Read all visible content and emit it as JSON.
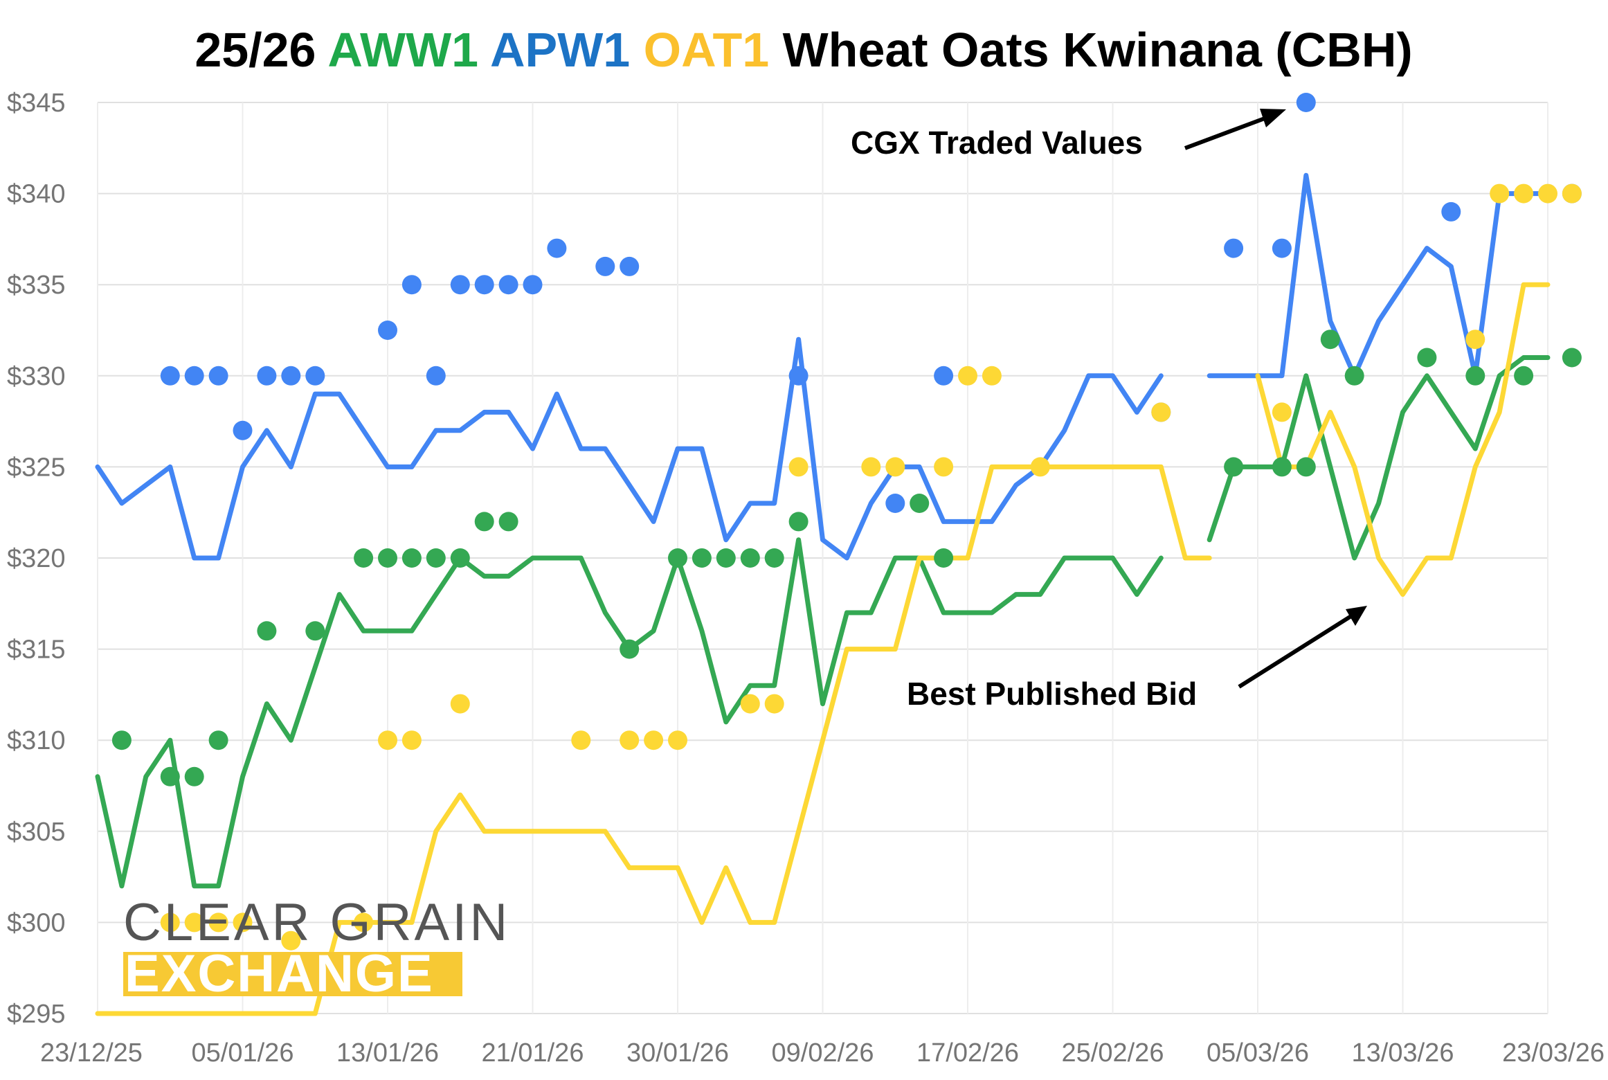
{
  "colors": {
    "aww1": "#34a853",
    "apw1": "#4285f4",
    "oat1": "#fbc02d",
    "grid": "#e0e0e0",
    "tick": "#757575",
    "title": "#000000",
    "logo_gold": "#f7c934",
    "logo_grey": "#555555"
  },
  "chart_data": {
    "type": "line",
    "title_parts": [
      {
        "text": "25/26 ",
        "color": "#000000"
      },
      {
        "text": "AWW1 ",
        "color": "#1ea84a"
      },
      {
        "text": "APW1 ",
        "color": "#1c73c5"
      },
      {
        "text": "OAT1 ",
        "color": "#fbc02d"
      },
      {
        "text": "Wheat Oats Kwinana (CBH)",
        "color": "#000000"
      }
    ],
    "y_ticks": [
      "$295",
      "$300",
      "$305",
      "$310",
      "$315",
      "$320",
      "$325",
      "$330",
      "$335",
      "$340",
      "$345"
    ],
    "y_tick_values": [
      295,
      300,
      305,
      310,
      315,
      320,
      325,
      330,
      335,
      340,
      345
    ],
    "ylim": [
      295,
      345
    ],
    "x_ticks": [
      "23/12/25",
      "05/01/26",
      "13/01/26",
      "21/01/26",
      "30/01/26",
      "09/02/26",
      "17/02/26",
      "25/02/26",
      "05/03/26",
      "13/03/26",
      "23/03/26"
    ],
    "x_tick_index": [
      0,
      6,
      12,
      18,
      24,
      30,
      36,
      42,
      48,
      54,
      60
    ],
    "n_points": 61,
    "grid": true,
    "series": [
      {
        "name": "APW1",
        "kind": "line",
        "color": "#4285f4",
        "values": [
          325,
          323,
          324,
          325,
          320,
          320,
          325,
          327,
          325,
          329,
          329,
          327,
          325,
          325,
          327,
          327,
          328,
          328,
          326,
          329,
          326,
          326,
          324,
          322,
          326,
          326,
          321,
          323,
          323,
          332,
          321,
          320,
          323,
          325,
          325,
          322,
          322,
          322,
          324,
          325,
          327,
          330,
          330,
          328,
          330,
          null,
          330,
          330,
          330,
          330,
          341,
          333,
          330,
          333,
          335,
          337,
          336,
          330,
          340,
          340,
          340
        ]
      },
      {
        "name": "AWW1",
        "kind": "line",
        "color": "#34a853",
        "values": [
          308,
          302,
          308,
          310,
          302,
          302,
          308,
          312,
          310,
          314,
          318,
          316,
          316,
          316,
          318,
          320,
          319,
          319,
          320,
          320,
          320,
          317,
          315,
          316,
          320,
          316,
          311,
          313,
          313,
          321,
          312,
          317,
          317,
          320,
          320,
          317,
          317,
          317,
          318,
          318,
          320,
          320,
          320,
          318,
          320,
          null,
          321,
          325,
          325,
          325,
          330,
          325,
          320,
          323,
          328,
          330,
          328,
          326,
          330,
          331,
          331
        ]
      },
      {
        "name": "OAT1",
        "kind": "line",
        "color": "#fdd835",
        "values": [
          295,
          295,
          295,
          295,
          295,
          295,
          295,
          295,
          295,
          295,
          300,
          300,
          300,
          300,
          305,
          307,
          305,
          305,
          305,
          305,
          305,
          305,
          303,
          303,
          303,
          300,
          303,
          300,
          300,
          305,
          310,
          315,
          315,
          315,
          320,
          320,
          320,
          325,
          325,
          325,
          325,
          325,
          325,
          325,
          325,
          320,
          320,
          null,
          330,
          325,
          325,
          328,
          325,
          320,
          318,
          320,
          320,
          325,
          328,
          335,
          335
        ]
      },
      {
        "name": "APW1",
        "kind": "points",
        "color": "#4285f4",
        "points": [
          [
            3,
            330
          ],
          [
            4,
            330
          ],
          [
            5,
            330
          ],
          [
            6,
            327
          ],
          [
            7,
            330
          ],
          [
            8,
            330
          ],
          [
            9,
            330
          ],
          [
            12,
            332.5
          ],
          [
            13,
            335
          ],
          [
            14,
            330
          ],
          [
            15,
            335
          ],
          [
            16,
            335
          ],
          [
            17,
            335
          ],
          [
            18,
            335
          ],
          [
            19,
            337
          ],
          [
            21,
            336
          ],
          [
            22,
            336
          ],
          [
            29,
            330
          ],
          [
            33,
            323
          ],
          [
            35,
            330
          ],
          [
            47,
            337
          ],
          [
            44,
            328
          ],
          [
            50,
            345
          ],
          [
            49,
            337
          ],
          [
            56,
            339
          ],
          [
            61,
            340
          ]
        ]
      },
      {
        "name": "AWW1",
        "kind": "points",
        "color": "#34a853",
        "points": [
          [
            1,
            310
          ],
          [
            3,
            308
          ],
          [
            4,
            308
          ],
          [
            5,
            310
          ],
          [
            7,
            316
          ],
          [
            9,
            316
          ],
          [
            11,
            320
          ],
          [
            12,
            320
          ],
          [
            13,
            320
          ],
          [
            14,
            320
          ],
          [
            15,
            320
          ],
          [
            16,
            322
          ],
          [
            17,
            322
          ],
          [
            22,
            315
          ],
          [
            24,
            320
          ],
          [
            25,
            320
          ],
          [
            26,
            320
          ],
          [
            27,
            320
          ],
          [
            28,
            320
          ],
          [
            29,
            322
          ],
          [
            34,
            323
          ],
          [
            35,
            320
          ],
          [
            47,
            325
          ],
          [
            49,
            325
          ],
          [
            50,
            325
          ],
          [
            51,
            332
          ],
          [
            52,
            330
          ],
          [
            55,
            331
          ],
          [
            57,
            330
          ],
          [
            59,
            330
          ],
          [
            61,
            331
          ]
        ]
      },
      {
        "name": "OAT1",
        "kind": "points",
        "color": "#fdd835",
        "points": [
          [
            3,
            300
          ],
          [
            4,
            300
          ],
          [
            5,
            300
          ],
          [
            6,
            300
          ],
          [
            8,
            299
          ],
          [
            11,
            300
          ],
          [
            12,
            310
          ],
          [
            13,
            310
          ],
          [
            15,
            312
          ],
          [
            20,
            310
          ],
          [
            22,
            310
          ],
          [
            23,
            310
          ],
          [
            24,
            310
          ],
          [
            27,
            312
          ],
          [
            28,
            312
          ],
          [
            29,
            325
          ],
          [
            32,
            325
          ],
          [
            33,
            325
          ],
          [
            35,
            325
          ],
          [
            36,
            330
          ],
          [
            37,
            330
          ],
          [
            39,
            325
          ],
          [
            44,
            328
          ],
          [
            49,
            328
          ],
          [
            57,
            332
          ],
          [
            58,
            340
          ],
          [
            59,
            340
          ],
          [
            60,
            340
          ],
          [
            61,
            340
          ]
        ]
      }
    ],
    "annotations": [
      {
        "text": "CGX Traded Values"
      },
      {
        "text": "Best Published Bid"
      }
    ]
  },
  "logo": {
    "line1": "CLEAR GRAIN",
    "line2": "EXCHANGE"
  }
}
